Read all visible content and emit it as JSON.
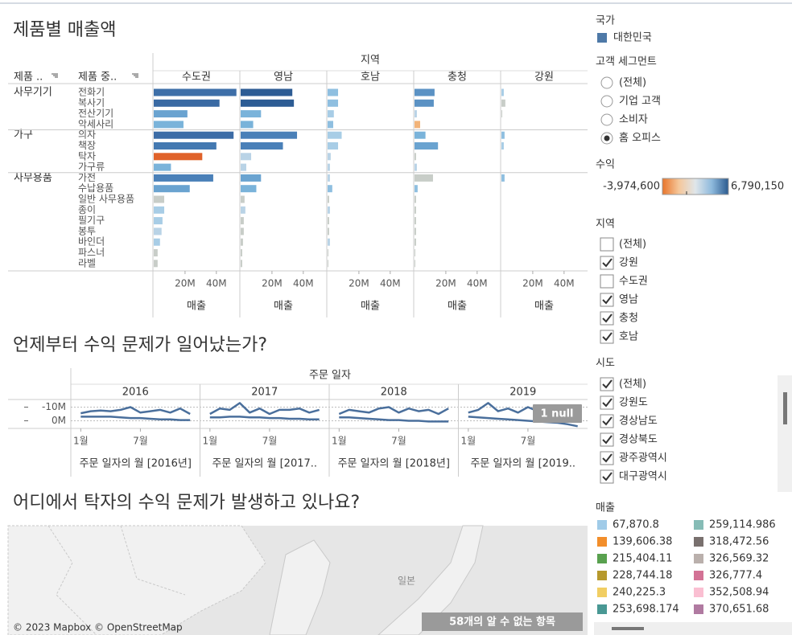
{
  "sheet1": {
    "title": "제품별 매출액",
    "column_header": "지역",
    "row_headers": [
      "제품 ..",
      "제품 중.."
    ],
    "axis_label": "매출",
    "xlim": [
      0,
      55000000
    ],
    "xticks": [
      {
        "value": 20000000,
        "label": "20M"
      },
      {
        "value": 40000000,
        "label": "40M"
      }
    ],
    "groups": [
      {
        "name": "사무기기",
        "products": [
          "전화기",
          "복사기",
          "전산기기",
          "악세사리"
        ]
      },
      {
        "name": "가구",
        "products": [
          "의자",
          "책장",
          "탁자",
          "가구류"
        ]
      },
      {
        "name": "사무용품",
        "products": [
          "가전",
          "수납용품",
          "일반 사무용품",
          "종이",
          "필기구",
          "봉투",
          "바인더",
          "파스너",
          "라벨"
        ]
      }
    ],
    "regions": [
      {
        "name": "수도권",
        "values": [
          52800000,
          42000000,
          21500000,
          19000000,
          51000000,
          40000000,
          31000000,
          11000000,
          38000000,
          23000000,
          6700000,
          6700000,
          5600000,
          5000000,
          4000000,
          2500000,
          2500000
        ],
        "colors": [
          "#3e6fa8",
          "#3a6aa3",
          "#6aa3d0",
          "#7ab3da",
          "#3c6ca6",
          "#4479b1",
          "#e0622a",
          "#7ab3da",
          "#4a80b8",
          "#6aa3d0",
          "#c8cdc8",
          "#a8cde6",
          "#a8cde6",
          "#b9d3e6",
          "#a8cde6",
          "#c8cdc8",
          "#c8cdc8"
        ]
      },
      {
        "name": "영남",
        "values": [
          33000000,
          34000000,
          13000000,
          8000000,
          36000000,
          27000000,
          6700000,
          3600000,
          13000000,
          10000000,
          2500000,
          3000000,
          2000000,
          2000000,
          1500000,
          1000000,
          1000000
        ],
        "colors": [
          "#2d5c94",
          "#2d5c94",
          "#7ab3da",
          "#7ab3da",
          "#4a80b8",
          "#4a80b8",
          "#b9d3e6",
          "#b9d3e6",
          "#6aa3d0",
          "#7ab3da",
          "#c8cdc8",
          "#b9d3e6",
          "#c8cdc8",
          "#c8cdc8",
          "#c8cdc8",
          "#c8cdc8",
          "#c8cdc8"
        ]
      },
      {
        "name": "호남",
        "values": [
          6700000,
          6700000,
          4000000,
          3600000,
          9000000,
          6700000,
          2000000,
          1500000,
          1500000,
          3000000,
          1000000,
          1500000,
          1000000,
          1000000,
          1500000,
          500000,
          500000
        ],
        "colors": [
          "#8fbfe0",
          "#8fbfe0",
          "#a8cde6",
          "#8fbfe0",
          "#a8cde6",
          "#a8cde6",
          "#b9d3e6",
          "#b9d3e6",
          "#b9d3e6",
          "#8fbfe0",
          "#c8cdc8",
          "#b9d3e6",
          "#c8cdc8",
          "#c8cdc8",
          "#b9d3e6",
          "#c8cdc8",
          "#c8cdc8"
        ]
      },
      {
        "name": "충청",
        "values": [
          12800000,
          12300000,
          1500000,
          3600000,
          7000000,
          15000000,
          1000000,
          1500000,
          11800000,
          2000000,
          1000000,
          1000000,
          1000000,
          1000000,
          1000000,
          500000,
          500000
        ],
        "colors": [
          "#5b92c4",
          "#5b92c4",
          "#b9d3e6",
          "#f2b47a",
          "#7ab3da",
          "#6aa3d0",
          "#c8cdc8",
          "#b9d3e6",
          "#c8cdc8",
          "#8fbfe0",
          "#c8cdc8",
          "#c8cdc8",
          "#c8cdc8",
          "#c8cdc8",
          "#c8cdc8",
          "#c8cdc8",
          "#c8cdc8"
        ]
      },
      {
        "name": "강원",
        "values": [
          1500000,
          2500000,
          500000,
          null,
          2000000,
          1500000,
          null,
          null,
          2000000,
          null,
          null,
          null,
          null,
          null,
          null,
          null,
          null
        ],
        "colors": [
          "#a8cde6",
          "#c8cdc8",
          "#c8cdc8",
          null,
          "#8fbfe0",
          "#a8cde6",
          null,
          null,
          "#8fbfe0",
          null,
          null,
          null,
          null,
          null,
          null,
          null,
          null
        ]
      }
    ]
  },
  "sheet2": {
    "title": "언제부터 수익 문제가 일어났는가?",
    "column_header": "주문 일자",
    "years": [
      "2016",
      "2017",
      "2018",
      "2019"
    ],
    "x_axis_labels": [
      "주문 일자의 월 [2016년]",
      "주문 일자의 월 [2017..",
      "주문 일자의 월 [2018년]",
      "주문 일자의 월 [2019.."
    ],
    "xlim": [
      0,
      13
    ],
    "xticks": [
      {
        "value": 1,
        "label": "1월"
      },
      {
        "value": 7,
        "label": "7월"
      }
    ],
    "ylim": [
      -15000000,
      5000000
    ],
    "yticks": [
      {
        "value": -10000000,
        "label": "-10M"
      },
      {
        "value": 0,
        "label": "0M"
      }
    ],
    "null_badge": "1 null",
    "series": [
      {
        "color": "#4a6f9c",
        "values": [
          [
            -5500000,
            -7000000,
            -7500000,
            -7000000,
            -8000000,
            -10000000,
            -6000000,
            -7000000,
            -8000000,
            -6000000,
            -9000000,
            -5000000
          ],
          [
            -5000000,
            -9000000,
            -8000000,
            -13000000,
            -6000000,
            -9000000,
            -5000000,
            -8000000,
            -8000000,
            -9000000,
            -6000000,
            -8000000
          ],
          [
            -5000000,
            -8000000,
            -7000000,
            -6000000,
            -9000000,
            -10000000,
            -6000000,
            -9000000,
            -7000000,
            -8000000,
            -5000000,
            -9000000
          ],
          [
            -6000000,
            -8000000,
            -13000000,
            -7000000,
            -9000000,
            -6000000,
            -10000000,
            -7000000,
            -9000000,
            -6000000,
            -9000000,
            -7000000
          ]
        ]
      },
      {
        "color": "#4a6f9c",
        "values": [
          [
            -3000000,
            -3000000,
            -3000000,
            -3000000,
            -2500000,
            -2000000,
            -2000000,
            -1500000,
            -1000000,
            -1000000,
            -500000,
            -500000
          ],
          [
            -2500000,
            -2500000,
            -3000000,
            -3000000,
            -2500000,
            -2500000,
            -2000000,
            -2000000,
            -1500000,
            -1500000,
            -1000000,
            -1000000
          ],
          [
            -2500000,
            -2500000,
            -2000000,
            -1500000,
            -1000000,
            -500000,
            -500000,
            0,
            0,
            500000,
            500000,
            500000
          ],
          [
            -3000000,
            -2500000,
            -2000000,
            -1500000,
            -1000000,
            -500000,
            0,
            500000,
            1000000,
            1500000,
            2500000,
            4000000
          ]
        ]
      }
    ]
  },
  "sheet3": {
    "title": "어디에서 탁자의 수익 문제가 발생하고 있나요?",
    "map_label": "일본",
    "attribution": "© 2023 Mapbox © OpenStreetMap",
    "unknown_badge": "58개의 알 수 없는 항목"
  },
  "filters": {
    "country": {
      "title": "국가",
      "items": [
        {
          "label": "대한민국",
          "color": "#4e79a7"
        }
      ]
    },
    "segment": {
      "title": "고객 세그먼트",
      "options": [
        {
          "label": "(전체)",
          "selected": false
        },
        {
          "label": "기업 고객",
          "selected": false
        },
        {
          "label": "소비자",
          "selected": false
        },
        {
          "label": "홈 오피스",
          "selected": true
        }
      ]
    },
    "profit": {
      "title": "수익",
      "min_label": "-3,974,600",
      "max_label": "6,790,150",
      "colors": [
        "#e8752b",
        "#f5c79a",
        "#dfe6ea",
        "#8db9dc",
        "#2b5a8f"
      ]
    },
    "region": {
      "title": "지역",
      "options": [
        {
          "label": "(전체)",
          "checked": false
        },
        {
          "label": "강원",
          "checked": true
        },
        {
          "label": "수도권",
          "checked": false
        },
        {
          "label": "영남",
          "checked": true
        },
        {
          "label": "충청",
          "checked": true
        },
        {
          "label": "호남",
          "checked": true
        }
      ]
    },
    "province": {
      "title": "시도",
      "options": [
        {
          "label": "(전체)",
          "checked": true
        },
        {
          "label": "강원도",
          "checked": true
        },
        {
          "label": "경상남도",
          "checked": true
        },
        {
          "label": "경상북도",
          "checked": true
        },
        {
          "label": "광주광역시",
          "checked": true
        },
        {
          "label": "대구광역시",
          "checked": true
        }
      ]
    },
    "sales": {
      "title": "매출",
      "items": [
        {
          "label": "67,870.8",
          "color": "#a0cbe8"
        },
        {
          "label": "139,606.38",
          "color": "#f28e2b"
        },
        {
          "label": "215,404.11",
          "color": "#59a14f"
        },
        {
          "label": "228,744.18",
          "color": "#b6992d"
        },
        {
          "label": "240,225.3",
          "color": "#f1ce63"
        },
        {
          "label": "253,698.174",
          "color": "#499894"
        },
        {
          "label": "259,114.986",
          "color": "#86bcb6"
        },
        {
          "label": "318,472.56",
          "color": "#79706e"
        },
        {
          "label": "326,569.32",
          "color": "#bab0ac"
        },
        {
          "label": "326,777.4",
          "color": "#d37295"
        },
        {
          "label": "352,508.94",
          "color": "#fabfd2"
        },
        {
          "label": "370,651.68",
          "color": "#b07aa1"
        }
      ]
    }
  }
}
